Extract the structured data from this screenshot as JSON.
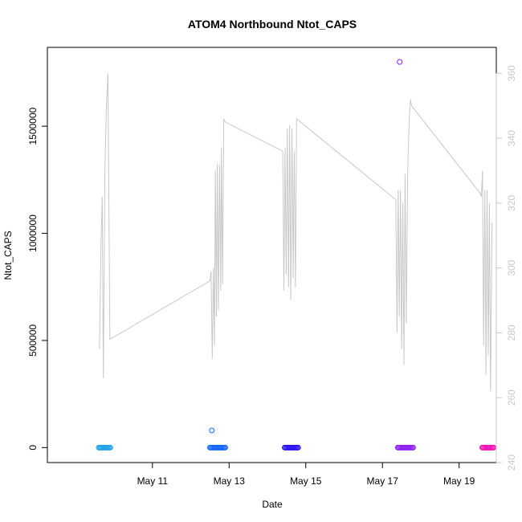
{
  "chart_data": {
    "type": "scatter",
    "title": "ATOM4 Northbound Ntot_CAPS",
    "xlabel": "Date",
    "ylabel": "Ntot_CAPS",
    "x_ticks": [
      "May 11",
      "May 13",
      "May 15",
      "May 17",
      "May 19"
    ],
    "x_range_days": [
      8.26,
      19.97
    ],
    "y_ticks": [
      "0",
      "500000",
      "1000000",
      "1500000"
    ],
    "ylim": [
      -70000,
      1868000
    ],
    "y2_ticks": [
      "240",
      "260",
      "280",
      "300",
      "320",
      "340",
      "360"
    ],
    "y2lim": [
      240,
      368
    ],
    "y2_axis_color": "#c8c8c8",
    "scatter_series": [
      {
        "color": "#1ea0e6",
        "x_start": 9.6,
        "x_end": 9.9,
        "y": 0
      },
      {
        "color": "#1464ff",
        "x_start": 12.5,
        "x_end": 12.9,
        "y": 0
      },
      {
        "color": "#1464ff",
        "outliers": [
          [
            12.55,
            80000
          ]
        ]
      },
      {
        "color": "#2a10f0",
        "x_start": 14.45,
        "x_end": 14.8,
        "y": 0
      },
      {
        "color": "#8c1ef0",
        "x_start": 17.4,
        "x_end": 17.8,
        "y": 0
      },
      {
        "color": "#8c1ef0",
        "outliers": [
          [
            17.45,
            1800000
          ]
        ]
      },
      {
        "color": "#f014b4",
        "x_start": 19.6,
        "x_end": 19.9,
        "y": 0
      }
    ],
    "line_series": {
      "color": "#c8c8c8",
      "axis": "y2",
      "points": [
        [
          9.62,
          275
        ],
        [
          9.66,
          308
        ],
        [
          9.69,
          322
        ],
        [
          9.72,
          266
        ],
        [
          9.76,
          330
        ],
        [
          9.8,
          350
        ],
        [
          9.84,
          360
        ],
        [
          9.89,
          278
        ],
        [
          12.5,
          296
        ],
        [
          12.53,
          299
        ],
        [
          12.56,
          272
        ],
        [
          12.59,
          300
        ],
        [
          12.62,
          276
        ],
        [
          12.64,
          330
        ],
        [
          12.67,
          285
        ],
        [
          12.69,
          332
        ],
        [
          12.72,
          287
        ],
        [
          12.75,
          332
        ],
        [
          12.78,
          293
        ],
        [
          12.8,
          337
        ],
        [
          12.83,
          295
        ],
        [
          12.86,
          346
        ],
        [
          12.9,
          345
        ],
        [
          14.4,
          336
        ],
        [
          14.43,
          293
        ],
        [
          14.46,
          337
        ],
        [
          14.49,
          298
        ],
        [
          14.52,
          343
        ],
        [
          14.55,
          294
        ],
        [
          14.58,
          344
        ],
        [
          14.61,
          290
        ],
        [
          14.64,
          343
        ],
        [
          14.67,
          297
        ],
        [
          14.7,
          336
        ],
        [
          14.73,
          294
        ],
        [
          14.76,
          346
        ],
        [
          17.35,
          321
        ],
        [
          17.38,
          280
        ],
        [
          17.41,
          324
        ],
        [
          17.44,
          285
        ],
        [
          17.47,
          324
        ],
        [
          17.5,
          275
        ],
        [
          17.53,
          320
        ],
        [
          17.56,
          270
        ],
        [
          17.59,
          329
        ],
        [
          17.62,
          283
        ],
        [
          17.66,
          330
        ],
        [
          17.7,
          346
        ],
        [
          17.73,
          352
        ],
        [
          17.76,
          350
        ],
        [
          19.55,
          323
        ],
        [
          19.58,
          322
        ],
        [
          19.61,
          330
        ],
        [
          19.64,
          276
        ],
        [
          19.67,
          324
        ],
        [
          19.7,
          267
        ],
        [
          19.73,
          324
        ],
        [
          19.76,
          273
        ],
        [
          19.79,
          320
        ],
        [
          19.82,
          262
        ],
        [
          19.86,
          314
        ]
      ]
    }
  }
}
